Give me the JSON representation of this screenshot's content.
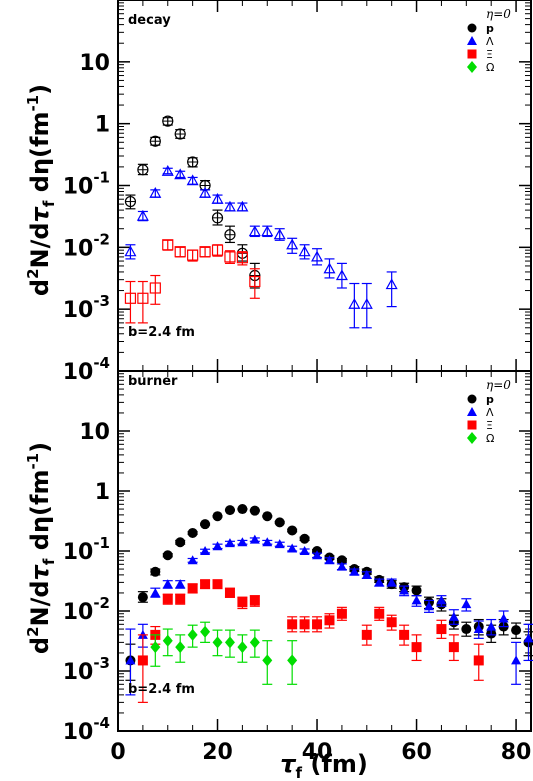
{
  "chart_data": [
    {
      "type": "scatter",
      "panel": "decay",
      "title": "",
      "annotation": "b=2.4 fm",
      "xlabel": "τ_f (fm)",
      "ylabel": "d²N/dτ_f dη(fm⁻¹)",
      "xlim": [
        0,
        83
      ],
      "ylim": [
        0.0001,
        100
      ],
      "yscale": "log",
      "xticks": [
        0,
        20,
        40,
        60,
        80
      ],
      "yticks": [
        {
          "value": 10,
          "base": "10",
          "exp": ""
        },
        {
          "value": 1,
          "base": "1",
          "exp": ""
        },
        {
          "value": 0.1,
          "base": "10",
          "exp": "-1"
        },
        {
          "value": 0.01,
          "base": "10",
          "exp": "-2"
        },
        {
          "value": 0.001,
          "base": "10",
          "exp": "-3"
        },
        {
          "value": 0.0001,
          "base": "10",
          "exp": "-4"
        }
      ],
      "legend": {
        "title": "η=0",
        "placement": "top-right"
      },
      "series": [
        {
          "name": "p",
          "marker": "circle-open",
          "color": "#000000",
          "points": [
            [
              2.5,
              0.055,
              0.042,
              0.07
            ],
            [
              5,
              0.18,
              0.15,
              0.22
            ],
            [
              7.5,
              0.52,
              0.45,
              0.6
            ],
            [
              10,
              1.1,
              0.95,
              1.25
            ],
            [
              12.5,
              0.68,
              0.58,
              0.8
            ],
            [
              15,
              0.24,
              0.2,
              0.28
            ],
            [
              17.5,
              0.1,
              0.085,
              0.12
            ],
            [
              20,
              0.03,
              0.023,
              0.04
            ],
            [
              22.5,
              0.016,
              0.012,
              0.022
            ],
            [
              25,
              0.008,
              0.006,
              0.011
            ],
            [
              27.5,
              0.0035,
              0.0022,
              0.0055
            ]
          ]
        },
        {
          "name": "Λ",
          "marker": "triangle-open",
          "color": "#0000ff",
          "points": [
            [
              2.5,
              0.0085,
              0.0065,
              0.011
            ],
            [
              5,
              0.032,
              0.027,
              0.038
            ],
            [
              7.5,
              0.075,
              0.065,
              0.085
            ],
            [
              10,
              0.17,
              0.155,
              0.19
            ],
            [
              12.5,
              0.15,
              0.135,
              0.17
            ],
            [
              15,
              0.12,
              0.105,
              0.135
            ],
            [
              17.5,
              0.075,
              0.065,
              0.085
            ],
            [
              20,
              0.06,
              0.052,
              0.07
            ],
            [
              22.5,
              0.045,
              0.039,
              0.052
            ],
            [
              25,
              0.045,
              0.039,
              0.052
            ],
            [
              27.5,
              0.018,
              0.015,
              0.022
            ],
            [
              30,
              0.018,
              0.015,
              0.022
            ],
            [
              32.5,
              0.016,
              0.013,
              0.02
            ],
            [
              35,
              0.011,
              0.008,
              0.014
            ],
            [
              37.5,
              0.0085,
              0.0065,
              0.011
            ],
            [
              40,
              0.007,
              0.0052,
              0.0095
            ],
            [
              42.5,
              0.0045,
              0.0032,
              0.0065
            ],
            [
              45,
              0.0035,
              0.0022,
              0.0055
            ],
            [
              47.5,
              0.0012,
              0.0005,
              0.0026
            ],
            [
              50,
              0.0012,
              0.0005,
              0.0026
            ],
            [
              55,
              0.0025,
              0.0011,
              0.004
            ]
          ]
        },
        {
          "name": "Ξ",
          "marker": "square-open",
          "color": "#ff0000",
          "points": [
            [
              2.5,
              0.0015,
              0.0006,
              0.0028
            ],
            [
              5,
              0.0015,
              0.0006,
              0.0028
            ],
            [
              7.5,
              0.0022,
              0.0012,
              0.0035
            ],
            [
              10,
              0.011,
              0.009,
              0.013
            ],
            [
              12.5,
              0.0085,
              0.007,
              0.01
            ],
            [
              15,
              0.0075,
              0.006,
              0.009
            ],
            [
              17.5,
              0.0085,
              0.007,
              0.01
            ],
            [
              20,
              0.009,
              0.0072,
              0.011
            ],
            [
              22.5,
              0.007,
              0.0055,
              0.0088
            ],
            [
              25,
              0.0068,
              0.0052,
              0.0085
            ],
            [
              27.5,
              0.0028,
              0.0015,
              0.0045
            ]
          ]
        },
        {
          "name": "Ω",
          "marker": "diamond-filled",
          "color": "#00dd00",
          "points": []
        }
      ]
    },
    {
      "type": "scatter",
      "panel": "burner",
      "title": "",
      "annotation": "b=2.4 fm",
      "xlabel": "τ_f (fm)",
      "ylabel": "d²N/dτ_f dη(fm⁻¹)",
      "xlim": [
        0,
        83
      ],
      "ylim": [
        0.0001,
        100
      ],
      "yscale": "log",
      "xticks": [
        0,
        20,
        40,
        60,
        80
      ],
      "legend": {
        "title": "η=0",
        "placement": "top-right"
      },
      "series": [
        {
          "name": "p",
          "marker": "circle-filled",
          "color": "#000000",
          "points": [
            [
              2.5,
              0.0015,
              0.0007,
              0.0028
            ],
            [
              5,
              0.017,
              0.014,
              0.021
            ],
            [
              7.5,
              0.045,
              0.04,
              0.05
            ],
            [
              10,
              0.085,
              0.08,
              0.09
            ],
            [
              12.5,
              0.14,
              0.13,
              0.15
            ],
            [
              15,
              0.2,
              0.19,
              0.21
            ],
            [
              17.5,
              0.28,
              0.27,
              0.29
            ],
            [
              20,
              0.38,
              0.37,
              0.39
            ],
            [
              22.5,
              0.48,
              0.47,
              0.49
            ],
            [
              25,
              0.5,
              0.49,
              0.51
            ],
            [
              27.5,
              0.47,
              0.46,
              0.48
            ],
            [
              30,
              0.38,
              0.37,
              0.39
            ],
            [
              32.5,
              0.3,
              0.29,
              0.31
            ],
            [
              35,
              0.22,
              0.21,
              0.23
            ],
            [
              37.5,
              0.16,
              0.15,
              0.17
            ],
            [
              40,
              0.1,
              0.095,
              0.105
            ],
            [
              42.5,
              0.078,
              0.073,
              0.083
            ],
            [
              45,
              0.07,
              0.065,
              0.075
            ],
            [
              47.5,
              0.05,
              0.046,
              0.055
            ],
            [
              50,
              0.045,
              0.041,
              0.05
            ],
            [
              52.5,
              0.033,
              0.03,
              0.037
            ],
            [
              55,
              0.028,
              0.024,
              0.032
            ],
            [
              57.5,
              0.025,
              0.021,
              0.029
            ],
            [
              60,
              0.022,
              0.018,
              0.026
            ],
            [
              62.5,
              0.014,
              0.011,
              0.017
            ],
            [
              65,
              0.013,
              0.01,
              0.016
            ],
            [
              67.5,
              0.0065,
              0.005,
              0.0085
            ],
            [
              70,
              0.005,
              0.0038,
              0.0065
            ],
            [
              72.5,
              0.0055,
              0.004,
              0.0072
            ],
            [
              75,
              0.0042,
              0.003,
              0.0058
            ],
            [
              77.5,
              0.0055,
              0.004,
              0.0072
            ],
            [
              80,
              0.0048,
              0.0035,
              0.0063
            ],
            [
              82.5,
              0.003,
              0.0018,
              0.0045
            ]
          ]
        },
        {
          "name": "Λ",
          "marker": "triangle-filled",
          "color": "#0000ff",
          "points": [
            [
              2.5,
              0.0015,
              0.0004,
              0.005
            ],
            [
              5,
              0.004,
              0.0025,
              0.006
            ],
            [
              7.5,
              0.02,
              0.017,
              0.024
            ],
            [
              10,
              0.028,
              0.024,
              0.032
            ],
            [
              12.5,
              0.028,
              0.024,
              0.032
            ],
            [
              15,
              0.07,
              0.065,
              0.075
            ],
            [
              17.5,
              0.1,
              0.093,
              0.107
            ],
            [
              20,
              0.12,
              0.11,
              0.13
            ],
            [
              22.5,
              0.135,
              0.125,
              0.145
            ],
            [
              25,
              0.14,
              0.13,
              0.15
            ],
            [
              27.5,
              0.155,
              0.145,
              0.165
            ],
            [
              30,
              0.14,
              0.13,
              0.15
            ],
            [
              32.5,
              0.13,
              0.12,
              0.14
            ],
            [
              35,
              0.11,
              0.1,
              0.12
            ],
            [
              37.5,
              0.1,
              0.092,
              0.108
            ],
            [
              40,
              0.085,
              0.078,
              0.092
            ],
            [
              42.5,
              0.07,
              0.063,
              0.077
            ],
            [
              45,
              0.055,
              0.049,
              0.061
            ],
            [
              47.5,
              0.045,
              0.04,
              0.05
            ],
            [
              50,
              0.04,
              0.035,
              0.045
            ],
            [
              52.5,
              0.03,
              0.026,
              0.034
            ],
            [
              55,
              0.03,
              0.026,
              0.034
            ],
            [
              57.5,
              0.022,
              0.018,
              0.026
            ],
            [
              60,
              0.015,
              0.012,
              0.018
            ],
            [
              62.5,
              0.012,
              0.0095,
              0.015
            ],
            [
              65,
              0.015,
              0.012,
              0.018
            ],
            [
              67.5,
              0.008,
              0.006,
              0.0105
            ],
            [
              70,
              0.013,
              0.01,
              0.016
            ],
            [
              72.5,
              0.005,
              0.0035,
              0.0068
            ],
            [
              75,
              0.0055,
              0.004,
              0.0072
            ],
            [
              77.5,
              0.0075,
              0.0055,
              0.01
            ],
            [
              80,
              0.0015,
              0.0006,
              0.003
            ],
            [
              82.5,
              0.0035,
              0.0015,
              0.006
            ]
          ]
        },
        {
          "name": "Ξ",
          "marker": "square-filled",
          "color": "#ff0000",
          "points": [
            [
              5,
              0.0015,
              0.0003,
              0.004
            ],
            [
              7.5,
              0.004,
              0.0028,
              0.0055
            ],
            [
              10,
              0.016,
              0.013,
              0.019
            ],
            [
              12.5,
              0.016,
              0.013,
              0.019
            ],
            [
              15,
              0.024,
              0.02,
              0.028
            ],
            [
              17.5,
              0.028,
              0.024,
              0.032
            ],
            [
              20,
              0.028,
              0.024,
              0.032
            ],
            [
              22.5,
              0.02,
              0.017,
              0.024
            ],
            [
              25,
              0.014,
              0.011,
              0.017
            ],
            [
              27.5,
              0.015,
              0.012,
              0.018
            ],
            [
              35,
              0.006,
              0.0045,
              0.008
            ],
            [
              37.5,
              0.006,
              0.0045,
              0.008
            ],
            [
              40,
              0.006,
              0.0045,
              0.008
            ],
            [
              42.5,
              0.007,
              0.0052,
              0.009
            ],
            [
              45,
              0.009,
              0.007,
              0.0115
            ],
            [
              50,
              0.004,
              0.0027,
              0.0058
            ],
            [
              52.5,
              0.009,
              0.007,
              0.0115
            ],
            [
              55,
              0.0065,
              0.0048,
              0.0085
            ],
            [
              57.5,
              0.004,
              0.0027,
              0.0058
            ],
            [
              60,
              0.0025,
              0.0015,
              0.004
            ],
            [
              65,
              0.005,
              0.0035,
              0.007
            ],
            [
              67.5,
              0.0025,
              0.0015,
              0.004
            ],
            [
              72.5,
              0.0015,
              0.0007,
              0.0028
            ]
          ]
        },
        {
          "name": "Ω",
          "marker": "diamond-filled",
          "color": "#00dd00",
          "points": [
            [
              7.5,
              0.0025,
              0.0012,
              0.004
            ],
            [
              10,
              0.0032,
              0.0018,
              0.005
            ],
            [
              12.5,
              0.0025,
              0.0014,
              0.004
            ],
            [
              15,
              0.004,
              0.0025,
              0.0058
            ],
            [
              17.5,
              0.0045,
              0.003,
              0.0065
            ],
            [
              20,
              0.003,
              0.0018,
              0.0048
            ],
            [
              22.5,
              0.003,
              0.0017,
              0.0048
            ],
            [
              25,
              0.0025,
              0.0014,
              0.004
            ],
            [
              27.5,
              0.003,
              0.0017,
              0.0048
            ],
            [
              30,
              0.0015,
              0.0006,
              0.0032
            ],
            [
              35,
              0.0015,
              0.0006,
              0.0032
            ]
          ]
        }
      ]
    }
  ],
  "labels": {
    "panel_top": "decay",
    "panel_bottom": "burner",
    "impact_top": "b=2.4 fm",
    "impact_bottom": "b=2.4 fm",
    "legend_title": "η=0",
    "ylabel_main": "d",
    "ylabel_sup": "2",
    "ylabel_mid": "N/d",
    "ylabel_tau": "τ",
    "ylabel_f": "f",
    "ylabel_rest": " dη(fm",
    "ylabel_exp": "-1",
    "ylabel_close": ")",
    "xlabel_tau": "τ",
    "xlabel_f": "f",
    "xlabel_rest": " (fm)"
  }
}
